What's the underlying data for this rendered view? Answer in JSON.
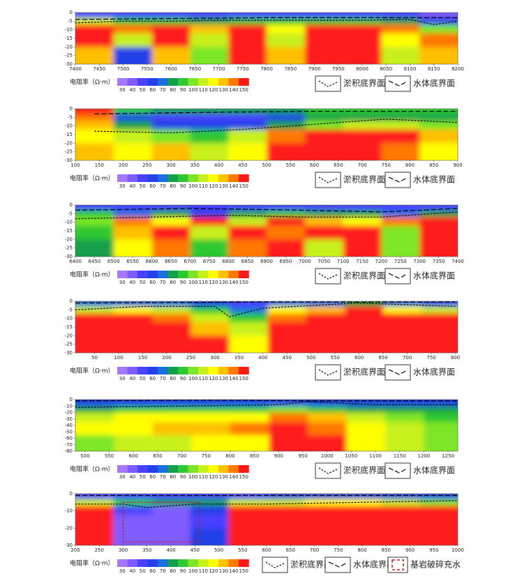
{
  "colorbar": {
    "label": "电阻率（Ω·m）",
    "levels": [
      30,
      40,
      50,
      60,
      70,
      80,
      90,
      100,
      110,
      120,
      130,
      140,
      150
    ],
    "colors": [
      "#a678ff",
      "#7f5cff",
      "#4a40ff",
      "#2440e8",
      "#1a6ee0",
      "#12a04c",
      "#2ec832",
      "#7de628",
      "#c8f01e",
      "#ffff00",
      "#ffc000",
      "#ff7800",
      "#ff1a1a"
    ]
  },
  "chart_data": [
    {
      "type": "heatmap",
      "xlim": [
        7400,
        8200
      ],
      "xticks": [
        7400,
        7450,
        7500,
        7550,
        7600,
        7650,
        7700,
        7750,
        7800,
        7850,
        7900,
        7950,
        8000,
        8050,
        8100,
        8150,
        8200
      ],
      "ylim": [
        -30,
        0
      ],
      "yticks": [
        0,
        -5,
        -10,
        -15,
        -20,
        -25,
        -30
      ],
      "xbins": [
        7400,
        7480,
        7560,
        7640,
        7720,
        7800,
        7880,
        7960,
        8040,
        8120,
        8200
      ],
      "ybins": [
        0,
        -3,
        -7,
        -12,
        -20,
        -30
      ],
      "z": [
        [
          50,
          50,
          50,
          50,
          50,
          50,
          50,
          50,
          50,
          40
        ],
        [
          110,
          90,
          90,
          80,
          90,
          90,
          90,
          90,
          80,
          60
        ],
        [
          150,
          140,
          150,
          130,
          150,
          120,
          150,
          150,
          140,
          100
        ],
        [
          150,
          110,
          150,
          110,
          150,
          110,
          150,
          150,
          120,
          140
        ],
        [
          130,
          60,
          130,
          100,
          150,
          130,
          150,
          150,
          110,
          130
        ]
      ],
      "lines": [
        {
          "name": "淤积底界面",
          "dash": "short",
          "x": [
            7400,
            7500,
            7600,
            7700,
            7800,
            7900,
            8000,
            8100,
            8150,
            8200
          ],
          "values": [
            -6,
            -5,
            -5,
            -4.5,
            -4.5,
            -4.5,
            -4.5,
            -4,
            -7,
            -5
          ]
        },
        {
          "name": "水体底界面",
          "dash": "long",
          "x": [
            7400,
            7600,
            7800,
            8000,
            8100,
            8200
          ],
          "values": [
            -4,
            -3.5,
            -3,
            -3,
            -3,
            -3
          ]
        }
      ]
    },
    {
      "type": "heatmap",
      "xlim": [
        100,
        900
      ],
      "xticks": [
        100,
        150,
        200,
        250,
        300,
        350,
        400,
        450,
        500,
        550,
        600,
        650,
        700,
        750,
        800,
        850,
        900
      ],
      "ylim": [
        -30,
        0
      ],
      "yticks": [
        0,
        -5,
        -10,
        -15,
        -20,
        -25,
        -30
      ],
      "xbins": [
        100,
        180,
        260,
        340,
        420,
        500,
        580,
        660,
        740,
        820,
        900
      ],
      "ybins": [
        0,
        -3,
        -7,
        -12,
        -20,
        -30
      ],
      "z": [
        [
          150,
          90,
          80,
          80,
          80,
          80,
          90,
          90,
          90,
          90
        ],
        [
          140,
          60,
          50,
          50,
          50,
          60,
          80,
          80,
          80,
          80
        ],
        [
          130,
          80,
          60,
          60,
          60,
          80,
          100,
          110,
          110,
          100
        ],
        [
          120,
          110,
          100,
          90,
          110,
          140,
          150,
          150,
          150,
          130
        ],
        [
          130,
          120,
          130,
          110,
          120,
          150,
          150,
          150,
          140,
          120
        ]
      ],
      "lines": [
        {
          "name": "淤积底界面",
          "dash": "short",
          "x": [
            140,
            300,
            450,
            600,
            750,
            900
          ],
          "values": [
            -13,
            -14,
            -12,
            -9,
            -6,
            -8
          ]
        },
        {
          "name": "水体底界面",
          "dash": "long",
          "x": [
            140,
            400,
            600,
            900
          ],
          "values": [
            -3,
            -2,
            -1.5,
            -1.5
          ]
        }
      ]
    },
    {
      "type": "heatmap",
      "xlim": [
        6400,
        7400
      ],
      "xticks": [
        6400,
        6450,
        6500,
        6550,
        6600,
        6650,
        6700,
        6750,
        6800,
        6850,
        6900,
        6950,
        7000,
        7050,
        7100,
        7150,
        7200,
        7250,
        7300,
        7350,
        7400
      ],
      "ylim": [
        -30,
        0
      ],
      "yticks": [
        0,
        -5,
        -10,
        -15,
        -20,
        -25,
        -30
      ],
      "xbins": [
        6400,
        6500,
        6600,
        6700,
        6800,
        6900,
        7000,
        7100,
        7200,
        7300,
        7400
      ],
      "ybins": [
        0,
        -3,
        -7,
        -12,
        -20,
        -30
      ],
      "z": [
        [
          50,
          50,
          50,
          50,
          50,
          50,
          50,
          50,
          50,
          50
        ],
        [
          90,
          70,
          80,
          60,
          80,
          90,
          80,
          80,
          70,
          80
        ],
        [
          100,
          140,
          120,
          150,
          110,
          150,
          130,
          120,
          140,
          150
        ],
        [
          90,
          130,
          150,
          110,
          150,
          140,
          150,
          150,
          100,
          150
        ],
        [
          80,
          120,
          140,
          90,
          140,
          150,
          110,
          150,
          100,
          150
        ]
      ],
      "lines": [
        {
          "name": "淤积底界面",
          "dash": "short",
          "x": [
            6400,
            6600,
            6800,
            7000,
            7200,
            7400
          ],
          "values": [
            -8,
            -7,
            -6,
            -7,
            -7,
            -4
          ]
        },
        {
          "name": "水体底界面",
          "dash": "long",
          "x": [
            6400,
            6700,
            7000,
            7200,
            7400
          ],
          "values": [
            -3,
            -2,
            -3,
            -4,
            -2
          ]
        }
      ]
    },
    {
      "type": "heatmap",
      "xlim": [
        10,
        805
      ],
      "xticks": [
        50,
        100,
        150,
        200,
        250,
        300,
        350,
        400,
        450,
        500,
        550,
        600,
        650,
        700,
        750,
        800
      ],
      "ylim": [
        -30,
        0
      ],
      "yticks": [
        0,
        -5,
        -10,
        -15,
        -20,
        -25,
        -30
      ],
      "xbins": [
        10,
        90,
        170,
        250,
        330,
        410,
        490,
        570,
        650,
        730,
        805
      ],
      "ybins": [
        0,
        -3,
        -7,
        -12,
        -20,
        -30
      ],
      "z": [
        [
          70,
          70,
          70,
          60,
          50,
          70,
          70,
          80,
          70,
          60
        ],
        [
          110,
          120,
          110,
          90,
          70,
          120,
          130,
          150,
          120,
          110
        ],
        [
          150,
          150,
          140,
          110,
          90,
          140,
          150,
          150,
          150,
          150
        ],
        [
          150,
          150,
          150,
          130,
          110,
          150,
          150,
          150,
          150,
          150
        ],
        [
          150,
          150,
          150,
          150,
          120,
          150,
          150,
          150,
          150,
          150
        ]
      ],
      "lines": [
        {
          "name": "淤积底界面",
          "dash": "short",
          "x": [
            10,
            150,
            300,
            330,
            400,
            600,
            800
          ],
          "values": [
            -5,
            -3,
            -3,
            -9,
            -4,
            -1,
            -3
          ]
        },
        {
          "name": "水体底界面",
          "dash": "long",
          "x": [
            10,
            400,
            800
          ],
          "values": [
            -1,
            -0.5,
            -0.5
          ]
        }
      ]
    },
    {
      "type": "heatmap",
      "xlim": [
        480,
        1270
      ],
      "xticks": [
        500,
        550,
        600,
        650,
        700,
        750,
        800,
        850,
        900,
        950,
        1000,
        1050,
        1100,
        1150,
        1200,
        1250
      ],
      "ylim": [
        -80,
        0
      ],
      "yticks": [
        0,
        -10,
        -20,
        -30,
        -40,
        -50,
        -60,
        -70,
        -80
      ],
      "xbins": [
        480,
        560,
        640,
        720,
        800,
        880,
        960,
        1040,
        1120,
        1200,
        1270
      ],
      "ybins": [
        0,
        -10,
        -20,
        -35,
        -55,
        -80
      ],
      "z": [
        [
          60,
          60,
          60,
          60,
          60,
          60,
          60,
          60,
          60,
          60
        ],
        [
          80,
          90,
          90,
          90,
          90,
          100,
          90,
          80,
          80,
          80
        ],
        [
          110,
          120,
          120,
          120,
          120,
          140,
          130,
          110,
          100,
          90
        ],
        [
          120,
          120,
          130,
          130,
          140,
          150,
          140,
          120,
          110,
          100
        ],
        [
          100,
          110,
          110,
          120,
          120,
          150,
          150,
          120,
          110,
          100
        ]
      ],
      "lines": [
        {
          "name": "淤积底界面",
          "dash": "short",
          "x": [
            480,
            700,
            900,
            960,
            1100,
            1270
          ],
          "values": [
            -12,
            -10,
            -8,
            -3,
            -8,
            -8
          ]
        },
        {
          "name": "水体底界面",
          "dash": "long",
          "x": [
            480,
            700,
            800,
            960,
            1270
          ],
          "values": [
            -2,
            -1,
            -1,
            -2,
            -2
          ]
        }
      ]
    },
    {
      "type": "heatmap",
      "xlim": [
        200,
        1000
      ],
      "xticks": [
        200,
        250,
        300,
        350,
        400,
        450,
        500,
        550,
        600,
        650,
        700,
        750,
        800,
        850,
        900,
        950,
        1000
      ],
      "ylim": [
        -30,
        0
      ],
      "yticks": [
        0,
        -10,
        -20,
        -30
      ],
      "xbins": [
        200,
        280,
        360,
        440,
        520,
        600,
        680,
        760,
        840,
        920,
        1000
      ],
      "ybins": [
        0,
        -3,
        -7,
        -12,
        -20,
        -30
      ],
      "z": [
        [
          50,
          50,
          50,
          50,
          50,
          60,
          60,
          60,
          60,
          60
        ],
        [
          110,
          90,
          80,
          80,
          110,
          110,
          120,
          120,
          110,
          100
        ],
        [
          150,
          50,
          40,
          60,
          150,
          150,
          150,
          150,
          150,
          150
        ],
        [
          150,
          40,
          40,
          50,
          150,
          150,
          150,
          150,
          150,
          150
        ],
        [
          150,
          40,
          40,
          60,
          150,
          150,
          150,
          150,
          150,
          150
        ]
      ],
      "lines": [
        {
          "name": "淤积底界面",
          "dash": "short",
          "x": [
            200,
            300,
            350,
            450,
            600,
            800,
            1000
          ],
          "values": [
            -6,
            -6,
            -8,
            -6,
            -6,
            -5,
            -4
          ]
        },
        {
          "name": "水体底界面",
          "dash": "long",
          "x": [
            200,
            1000
          ],
          "values": [
            -1,
            -1
          ]
        }
      ],
      "region": {
        "name": "基岩破碎充水",
        "x": [
          300,
          460
        ],
        "y": [
          -28,
          -5
        ]
      }
    }
  ]
}
